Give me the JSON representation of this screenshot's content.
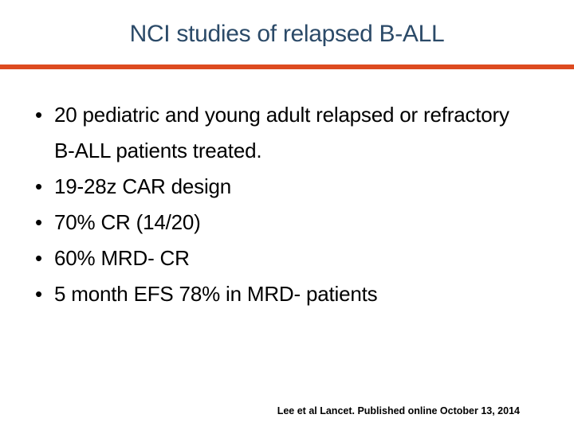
{
  "slide": {
    "title": "NCI studies of relapsed B-ALL",
    "bullets": [
      "20 pediatric and young adult relapsed or refractory B-ALL patients treated.",
      "19-28z CAR design",
      "70% CR (14/20)",
      "60% MRD- CR",
      "5 month EFS 78% in MRD- patients"
    ],
    "footer": "Lee et al Lancet. Published online October 13, 2014"
  },
  "colors": {
    "title": "#2B4A68",
    "divider": "#DD4B20",
    "body": "#000000",
    "background": "#FFFFFF"
  }
}
